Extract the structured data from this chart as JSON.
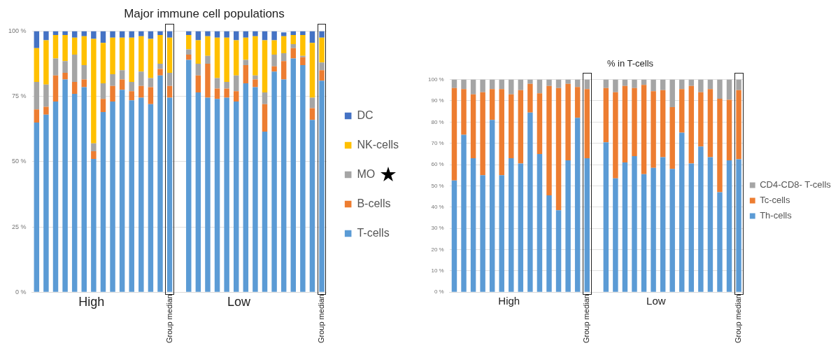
{
  "chart_data": [
    {
      "type": "bar",
      "title": "Major immune cell populations",
      "stacked": true,
      "grid": "y",
      "legend": "right",
      "annotations": [
        "High",
        "Low"
      ],
      "categories": [
        null,
        null,
        null,
        null,
        null,
        null,
        null,
        null,
        null,
        null,
        null,
        null,
        null,
        null,
        "Group median",
        null,
        null,
        null,
        null,
        null,
        null,
        null,
        null,
        null,
        null,
        null,
        null,
        null,
        null,
        null,
        "Group median"
      ],
      "ylim": [
        0,
        100
      ],
      "yticks": [
        {
          "value": 0,
          "label": "0 %"
        },
        {
          "value": 25,
          "label": "25 %"
        },
        {
          "value": 50,
          "label": "50 %"
        },
        {
          "value": 75,
          "label": "75 %"
        },
        {
          "value": 100,
          "label": "100 %"
        }
      ],
      "series": [
        {
          "name": "T-cells",
          "color": "#5b9bd5",
          "values": [
            65,
            68,
            73,
            81.5,
            76,
            78.5,
            51,
            69,
            73,
            77.5,
            73.5,
            74.5,
            72,
            83,
            74.5,
            null,
            89,
            76.5,
            74.5,
            74,
            74.5,
            73,
            80,
            78.5,
            61.5,
            84.5,
            81.5,
            89.5,
            87,
            66,
            81
          ]
        },
        {
          "name": "B-cells",
          "color": "#ed7d31",
          "values": [
            5,
            3,
            10,
            2.5,
            4.5,
            3,
            3,
            5,
            6,
            4,
            3.5,
            4.5,
            6.5,
            2.5,
            4.5,
            null,
            2,
            6.5,
            13,
            4,
            3.5,
            4,
            7,
            3,
            10.5,
            2,
            7,
            4,
            3,
            4.5,
            4
          ]
        },
        {
          "name": "MO",
          "color": "#a5a5a5",
          "values": [
            10.5,
            8.5,
            6.5,
            4.5,
            10.5,
            5.5,
            3,
            6,
            4.5,
            3.5,
            3.5,
            5.5,
            3.5,
            2,
            5,
            null,
            2,
            4.5,
            3,
            4,
            2.5,
            6,
            2,
            1.5,
            4.5,
            4.5,
            3,
            1.5,
            0.5,
            4,
            3
          ]
        },
        {
          "name": "NK-cells",
          "color": "#ffc000",
          "values": [
            13,
            17,
            9,
            10,
            6.5,
            11,
            40,
            15.5,
            14,
            12.5,
            17,
            13.5,
            15,
            11,
            13.5,
            null,
            5.5,
            9,
            7.5,
            15.5,
            17,
            13.5,
            8.5,
            15,
            20,
            5.5,
            6.5,
            3.5,
            8,
            21,
            9.5
          ]
        },
        {
          "name": "DC",
          "color": "#4472c4",
          "values": [
            6.5,
            3.5,
            1.5,
            1.5,
            2.5,
            2,
            3,
            4.5,
            2.5,
            2.5,
            2.5,
            2,
            3,
            1.5,
            2.5,
            null,
            1.5,
            3.5,
            2,
            2.5,
            2.5,
            3.5,
            2.5,
            2,
            3.5,
            3.5,
            1.5,
            1.5,
            1.5,
            4.5,
            2.5
          ]
        }
      ]
    },
    {
      "type": "bar",
      "title": "% in T-cells",
      "stacked": true,
      "grid": "y",
      "legend": "right",
      "annotations": [
        "High",
        "Low"
      ],
      "categories": [
        null,
        null,
        null,
        null,
        null,
        null,
        null,
        null,
        null,
        null,
        null,
        null,
        null,
        null,
        "Group median",
        null,
        null,
        null,
        null,
        null,
        null,
        null,
        null,
        null,
        null,
        null,
        null,
        null,
        null,
        null,
        "Group median"
      ],
      "ylim": [
        0,
        100
      ],
      "yticks": [
        {
          "value": 0,
          "label": "0 %"
        },
        {
          "value": 10,
          "label": "10 %"
        },
        {
          "value": 20,
          "label": "20 %"
        },
        {
          "value": 30,
          "label": "30 %"
        },
        {
          "value": 40,
          "label": "40 %"
        },
        {
          "value": 50,
          "label": "50 %"
        },
        {
          "value": 60,
          "label": "60 %"
        },
        {
          "value": 70,
          "label": "70 %"
        },
        {
          "value": 80,
          "label": "80 %"
        },
        {
          "value": 90,
          "label": "90 %"
        },
        {
          "value": 100,
          "label": "100 %"
        }
      ],
      "series": [
        {
          "name": "Th-cells",
          "color": "#5b9bd5",
          "values": [
            52.5,
            74,
            63,
            55,
            81,
            55,
            63,
            60.5,
            84.5,
            65,
            45.5,
            38.5,
            62,
            82,
            63,
            null,
            70.5,
            53.5,
            61,
            64,
            55.5,
            58.5,
            63.5,
            58,
            75,
            60.5,
            68.5,
            63.5,
            47,
            62,
            62.5
          ]
        },
        {
          "name": "Tc-cells",
          "color": "#ed7d31",
          "values": [
            43.5,
            21.5,
            30,
            39,
            14.5,
            40.5,
            30,
            34.5,
            13.5,
            28.5,
            51.5,
            57.5,
            36,
            14.5,
            32.5,
            null,
            25.5,
            40.5,
            36,
            32,
            42,
            36,
            31.5,
            29,
            20.5,
            36.5,
            25.5,
            32,
            44,
            28.5,
            32.5
          ]
        },
        {
          "name": "CD4-CD8- T-cells",
          "color": "#a5a5a5",
          "values": [
            4,
            4.5,
            7,
            6,
            4.5,
            4.5,
            7,
            5,
            2,
            6.5,
            3,
            4,
            2,
            3.5,
            4.5,
            null,
            4,
            6,
            3,
            4,
            2.5,
            5.5,
            5,
            13,
            4.5,
            3,
            6,
            4.5,
            9,
            9.5,
            5
          ]
        }
      ]
    }
  ]
}
